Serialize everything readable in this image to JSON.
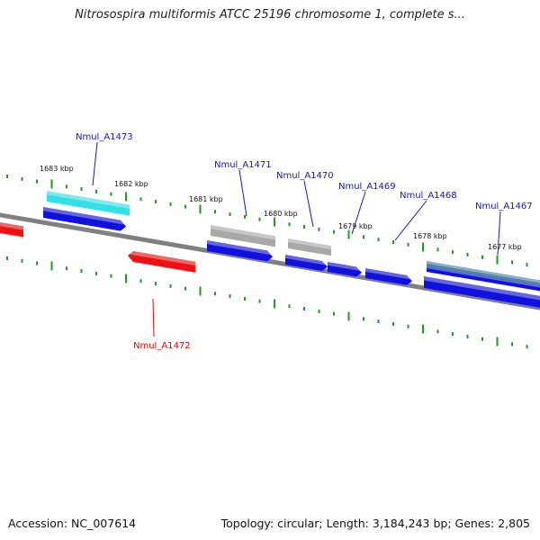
{
  "title": "Nitrosospira multiformis ATCC 25196 chromosome 1, complete s...",
  "footer": {
    "accession": "Accession: NC_007614",
    "topology": "Topology: circular; Length: 3,184,243 bp; Genes: 2,805"
  },
  "colors": {
    "forward_gene": "#1111dd",
    "reverse_gene": "#ee1111",
    "backbone": "#808080",
    "tick": "#229922",
    "label_forward": "#1a1aa8",
    "label_reverse": "#cc1111",
    "highlight_cyan": "#33e0e8",
    "gray_feature": "#a8a8a8",
    "steel_feature": "#4f84a8"
  },
  "kbp_labels": [
    "1683 kbp",
    "1682 kbp",
    "1681 kbp",
    "1680 kbp",
    "1679 kbp",
    "1678 kbp",
    "1677 kbp"
  ],
  "genes": [
    {
      "name": "Nmul_A1473",
      "strand": "forward"
    },
    {
      "name": "Nmul_A1472",
      "strand": "reverse"
    },
    {
      "name": "Nmul_A1471",
      "strand": "forward"
    },
    {
      "name": "Nmul_A1470",
      "strand": "forward"
    },
    {
      "name": "Nmul_A1469",
      "strand": "forward"
    },
    {
      "name": "Nmul_A1468",
      "strand": "forward"
    },
    {
      "name": "Nmul_A1467",
      "strand": "forward"
    }
  ]
}
